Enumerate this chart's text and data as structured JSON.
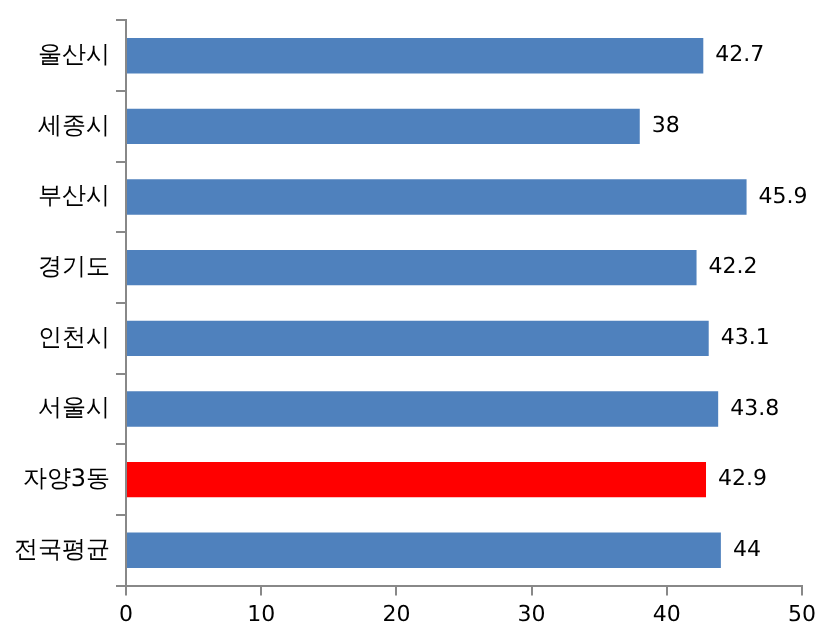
{
  "chart_data": {
    "type": "bar",
    "orientation": "horizontal",
    "categories": [
      "울산시",
      "세종시",
      "부산시",
      "경기도",
      "인천시",
      "서울시",
      "자양3동",
      "전국평균"
    ],
    "values": [
      42.7,
      38,
      45.9,
      42.2,
      43.1,
      43.8,
      42.9,
      44
    ],
    "colors": [
      "#4f81bd",
      "#4f81bd",
      "#4f81bd",
      "#4f81bd",
      "#4f81bd",
      "#4f81bd",
      "#ff0000",
      "#4f81bd"
    ],
    "xlim": [
      0,
      50
    ],
    "xticks": [
      0,
      10,
      20,
      30,
      40,
      50
    ],
    "grid": false,
    "legend": false,
    "data_labels": true
  }
}
